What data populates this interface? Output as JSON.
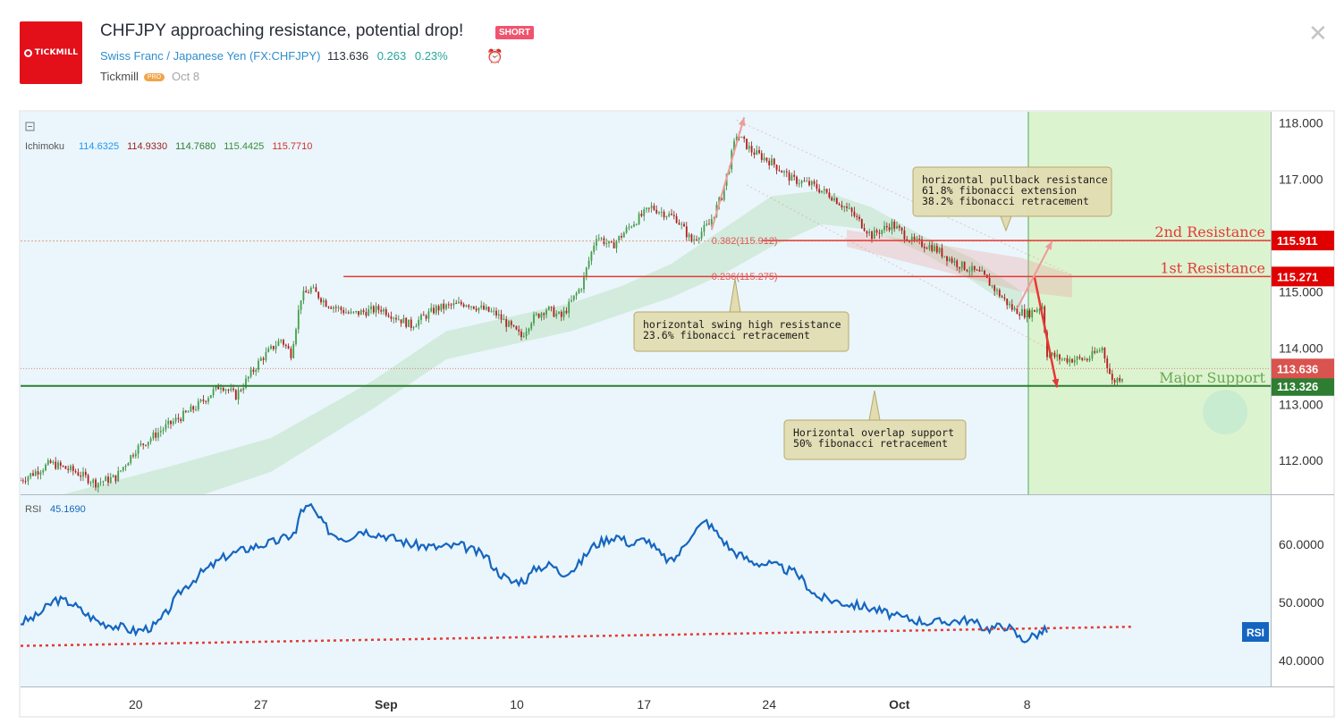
{
  "header": {
    "logo_text": "TICKMILL",
    "title": "CHFJPY approaching resistance, potential drop!",
    "badge": "SHORT",
    "symbol_name": "Swiss Franc / Japanese Yen",
    "symbol_code": "(FX:CHFJPY)",
    "price": "113.636",
    "change": "0.263",
    "change_pct": "0.23%",
    "author": "Tickmill",
    "author_badge": "PRO",
    "date": "Oct 8",
    "close_glyph": "✕",
    "alarm_glyph": "⏰"
  },
  "chart_data": [
    {
      "type": "candlestick",
      "panel": "main",
      "indicator": {
        "name": "Ichimoku",
        "values": [
          "114.6325",
          "114.9330",
          "114.7680",
          "115.4425",
          "115.7710"
        ],
        "colors": [
          "#2196f3",
          "#9c1d1d",
          "#2e7d32",
          "#388e3c",
          "#d32f2f"
        ]
      },
      "y_range": [
        111.4,
        118.2
      ],
      "y_ticks": [
        "118.000",
        "117.000",
        "116.000",
        "115.000",
        "114.000",
        "113.000",
        "112.000"
      ],
      "x_ticks": [
        "20",
        "27",
        "Sep",
        "10",
        "17",
        "24",
        "Oct",
        "8"
      ],
      "price_path": [
        [
          0,
          111.65
        ],
        [
          12,
          111.95
        ],
        [
          22,
          111.8
        ],
        [
          30,
          111.6
        ],
        [
          38,
          111.7
        ],
        [
          46,
          112.2
        ],
        [
          58,
          112.6
        ],
        [
          70,
          112.95
        ],
        [
          80,
          113.35
        ],
        [
          86,
          113.15
        ],
        [
          96,
          113.8
        ],
        [
          104,
          114.15
        ],
        [
          108,
          113.9
        ],
        [
          112,
          114.9
        ],
        [
          116,
          115.05
        ],
        [
          122,
          114.8
        ],
        [
          132,
          114.6
        ],
        [
          144,
          114.7
        ],
        [
          156,
          114.4
        ],
        [
          166,
          114.7
        ],
        [
          178,
          114.8
        ],
        [
          190,
          114.6
        ],
        [
          200,
          114.2
        ],
        [
          204,
          114.5
        ],
        [
          210,
          114.7
        ],
        [
          216,
          114.55
        ],
        [
          224,
          115.1
        ],
        [
          230,
          116.0
        ],
        [
          236,
          115.8
        ],
        [
          244,
          116.2
        ],
        [
          252,
          116.5
        ],
        [
          262,
          116.3
        ],
        [
          268,
          115.9
        ],
        [
          275,
          116.2
        ],
        [
          280,
          116.7
        ],
        [
          286,
          117.8
        ],
        [
          292,
          117.5
        ],
        [
          300,
          117.3
        ],
        [
          308,
          117.0
        ],
        [
          316,
          116.9
        ],
        [
          324,
          116.7
        ],
        [
          332,
          116.4
        ],
        [
          340,
          116.0
        ],
        [
          348,
          116.2
        ],
        [
          356,
          115.9
        ],
        [
          364,
          115.8
        ],
        [
          374,
          115.5
        ],
        [
          384,
          115.3
        ],
        [
          396,
          114.7
        ],
        [
          402,
          114.6
        ],
        [
          408,
          114.75
        ],
        [
          410,
          113.9
        ],
        [
          416,
          113.8
        ],
        [
          426,
          113.8
        ],
        [
          432,
          114.0
        ],
        [
          436,
          113.4
        ],
        [
          440,
          113.5
        ]
      ],
      "ichimoku_cloud": {
        "spanA": [
          [
            0,
            111.2
          ],
          [
            60,
            111.9
          ],
          [
            100,
            112.4
          ],
          [
            140,
            113.4
          ],
          [
            170,
            114.3
          ],
          [
            200,
            114.6
          ],
          [
            220,
            114.8
          ],
          [
            240,
            115.1
          ],
          [
            260,
            115.5
          ],
          [
            280,
            116.1
          ],
          [
            300,
            116.7
          ],
          [
            320,
            116.8
          ],
          [
            340,
            116.5
          ],
          [
            360,
            116.0
          ],
          [
            380,
            115.6
          ],
          [
            400,
            115.0
          ]
        ],
        "spanB": [
          [
            0,
            110.8
          ],
          [
            60,
            111.2
          ],
          [
            100,
            111.8
          ],
          [
            140,
            112.9
          ],
          [
            170,
            113.8
          ],
          [
            200,
            114.1
          ],
          [
            220,
            114.3
          ],
          [
            240,
            114.6
          ],
          [
            260,
            114.9
          ],
          [
            280,
            115.3
          ],
          [
            300,
            115.8
          ],
          [
            320,
            116.2
          ],
          [
            340,
            116.1
          ],
          [
            360,
            115.7
          ],
          [
            380,
            115.2
          ],
          [
            400,
            114.6
          ]
        ]
      },
      "levels": [
        {
          "name": "2nd Resistance",
          "value": 115.911,
          "label": "115.911",
          "color": "#e53935"
        },
        {
          "name": "1st Resistance",
          "value": 115.271,
          "label": "115.271",
          "color": "#e53935"
        },
        {
          "name": "Major Support",
          "value": 113.326,
          "label": "113.326",
          "color": "#2e7d32"
        },
        {
          "name": "",
          "value": 113.636,
          "label": "113.636",
          "color": "#d9534f"
        }
      ],
      "fib_labels": [
        {
          "text": "0.382(115.912)",
          "value": 115.912
        },
        {
          "text": "0.236(115.275)",
          "value": 115.275
        }
      ],
      "annotations": [
        {
          "lines": [
            "horizontal pullback resistance",
            "61.8% fibonacci extension",
            "38.2% fibonacci retracement"
          ]
        },
        {
          "lines": [
            "horizontal swing high resistance",
            "23.6% fibonacci retracement"
          ]
        },
        {
          "lines": [
            "Horizontal overlap support",
            "50% fibonacci retracement"
          ]
        }
      ]
    },
    {
      "type": "line",
      "panel": "rsi",
      "name": "RSI",
      "value_label": "45.1690",
      "badge": "RSI",
      "y_range": [
        35.5,
        68.5
      ],
      "y_ticks": [
        "60.0000",
        "50.0000",
        "40.0000"
      ],
      "color": "#1565c0",
      "trendline": {
        "from": [
          0,
          42.5
        ],
        "to": [
          444,
          45.8
        ],
        "color": "#e53935"
      },
      "points": [
        [
          0,
          46.5
        ],
        [
          6,
          47.5
        ],
        [
          10,
          49
        ],
        [
          14,
          50.5
        ],
        [
          20,
          50
        ],
        [
          26,
          48
        ],
        [
          32,
          46.5
        ],
        [
          38,
          46
        ],
        [
          46,
          45
        ],
        [
          54,
          46
        ],
        [
          58,
          48
        ],
        [
          64,
          52
        ],
        [
          72,
          55
        ],
        [
          82,
          58
        ],
        [
          92,
          59.5
        ],
        [
          102,
          60.5
        ],
        [
          110,
          62
        ],
        [
          112,
          66
        ],
        [
          116,
          66.5
        ],
        [
          120,
          64
        ],
        [
          124,
          62
        ],
        [
          130,
          61
        ],
        [
          136,
          62.5
        ],
        [
          146,
          61.5
        ],
        [
          156,
          60
        ],
        [
          166,
          59.5
        ],
        [
          176,
          59.8
        ],
        [
          186,
          58
        ],
        [
          190,
          55.5
        ],
        [
          196,
          53.5
        ],
        [
          202,
          54
        ],
        [
          206,
          56
        ],
        [
          212,
          56.5
        ],
        [
          216,
          55
        ],
        [
          222,
          56
        ],
        [
          228,
          59.5
        ],
        [
          232,
          60.5
        ],
        [
          238,
          61.5
        ],
        [
          244,
          60
        ],
        [
          250,
          61
        ],
        [
          256,
          58
        ],
        [
          260,
          57
        ],
        [
          264,
          59
        ],
        [
          268,
          62
        ],
        [
          274,
          64
        ],
        [
          278,
          62
        ],
        [
          284,
          59
        ],
        [
          292,
          57
        ],
        [
          300,
          56.5
        ],
        [
          310,
          55
        ],
        [
          318,
          51
        ],
        [
          328,
          50
        ],
        [
          340,
          49
        ],
        [
          350,
          47.5
        ],
        [
          364,
          46.5
        ],
        [
          378,
          47
        ],
        [
          386,
          45.5
        ],
        [
          394,
          46
        ],
        [
          400,
          43.5
        ],
        [
          406,
          44.5
        ],
        [
          410,
          45.3
        ]
      ]
    }
  ]
}
